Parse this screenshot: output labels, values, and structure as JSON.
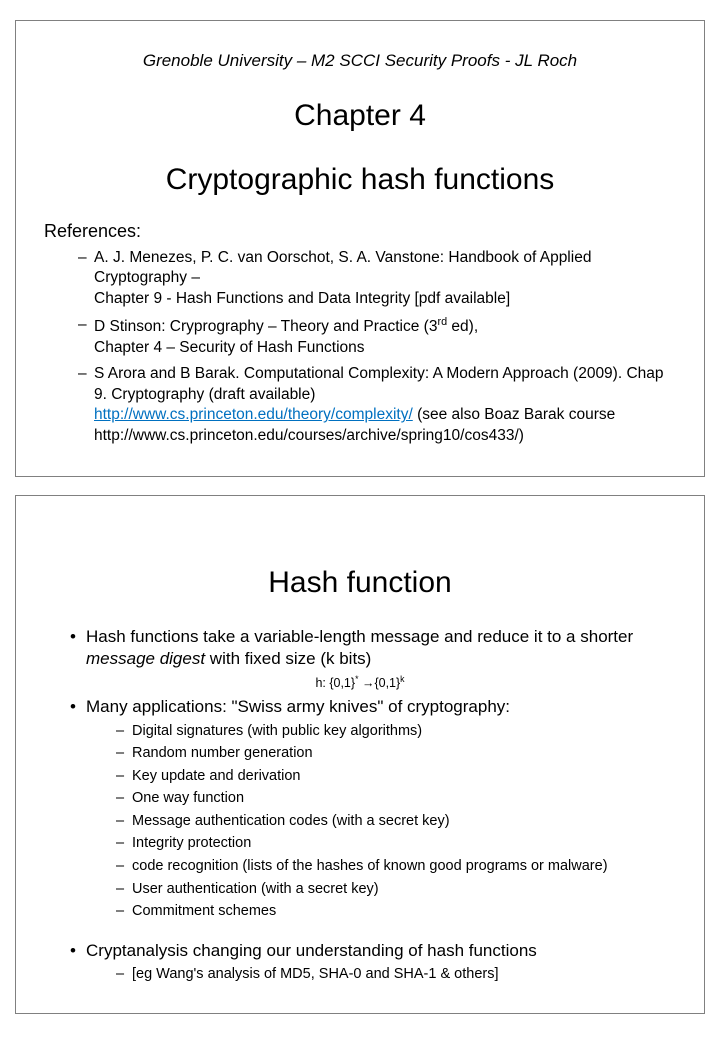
{
  "slide1": {
    "header": "Grenoble University – M2 SCCI Security Proofs -  JL Roch",
    "chapter": "Chapter 4",
    "title": "Cryptographic hash functions",
    "refs_label": "References:",
    "refs": [
      {
        "line1": "A. J. Menezes,  P. C. van Oorschot, S. A. Vanstone: Handbook of Applied Cryptography –",
        "line2": "Chapter 9 - Hash Functions and Data Integrity [pdf available]"
      },
      {
        "line1_a": "D Stinson: Cryprography – Theory and Practice    (3",
        "line1_sup": "rd",
        "line1_b": " ed),",
        "line2": "Chapter 4 – Security of Hash Functions"
      },
      {
        "line1": "S Arora and B Barak. Computational Complexity: A Modern Approach (2009). Chap 9. Cryptography (draft available)",
        "link": "http://www.cs.princeton.edu/theory/complexity/",
        "line2_after": " (see also Boaz Barak course http://www.cs.princeton.edu/courses/archive/spring10/cos433/)"
      }
    ]
  },
  "slide2": {
    "title": "Hash function",
    "b1_a": "Hash functions take a variable-length message and reduce it to a shorter ",
    "b1_i": "message digest",
    "b1_b": " with fixed size (k bits)",
    "formula_a": "h: {0,1}",
    "formula_sup1": "*",
    "formula_mid": " →{0,1}",
    "formula_sup2": "k",
    "b2": "Many applications: \"Swiss army knives\" of cryptography:",
    "apps": [
      "Digital signatures (with public key algorithms)",
      "Random number generation",
      "Key update and derivation",
      "One way function",
      "Message authentication codes (with a secret key)",
      "Integrity protection",
      "code recognition (lists of the hashes of known good programs or malware)",
      "User authentication (with a secret key)",
      "Commitment schemes"
    ],
    "b3": "Cryptanalysis changing our understanding of hash functions",
    "b3_sub": "[eg Wang's analysis of MD5, SHA-0 and SHA-1 & others]"
  }
}
